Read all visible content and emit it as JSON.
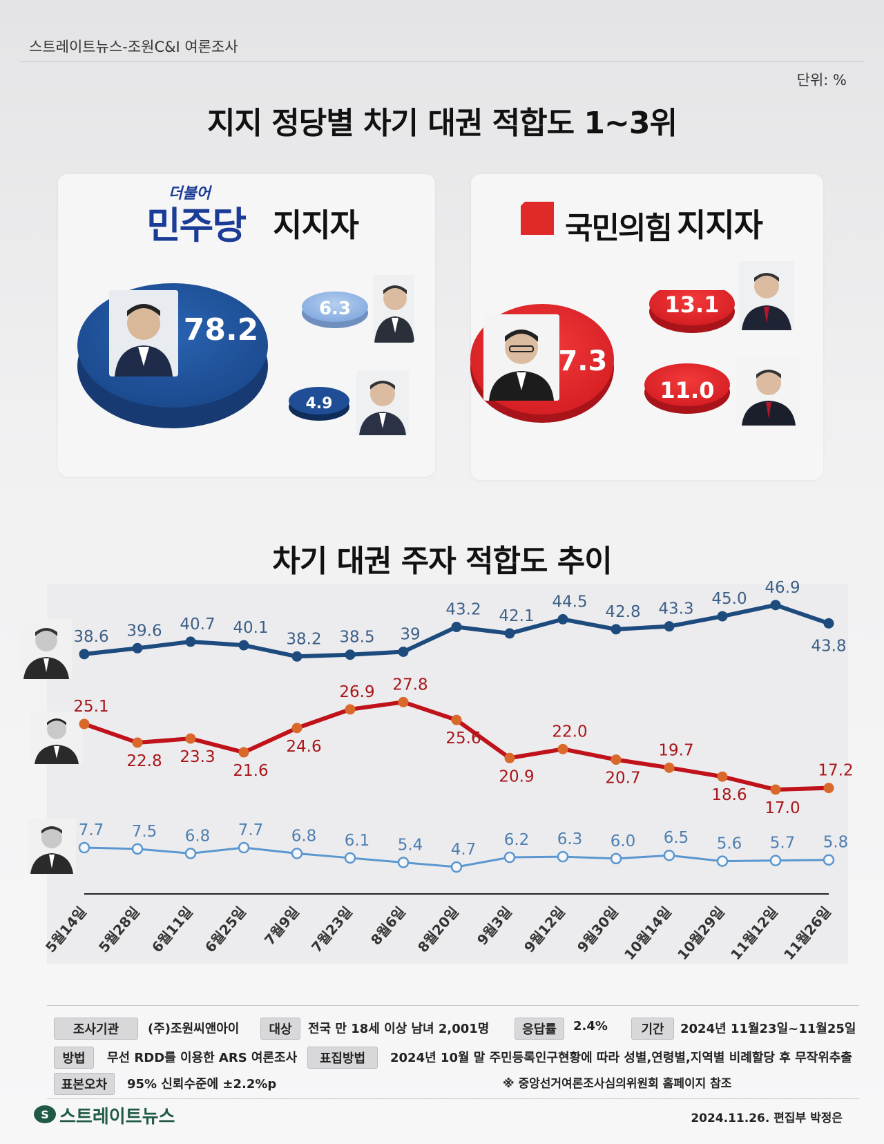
{
  "header": {
    "source": "스트레이트뉴스-조원C&I 여론조사",
    "unit": "단위: %",
    "title": "지지 정당별 차기 대권  적합도 1~3위"
  },
  "dem_panel": {
    "logo_small": "더불어",
    "logo_big": "민주당",
    "supporter_label": "지지자",
    "values": [
      "78.2",
      "6.3",
      "4.9"
    ],
    "colors": {
      "main": "#1f4e96",
      "secondary": "#8fb3e3"
    }
  },
  "ppp_panel": {
    "party_name": "국민의힘",
    "supporter_label": "지지자",
    "values": [
      "47.3",
      "13.1",
      "11.0"
    ],
    "colors": {
      "main": "#e02a2a"
    }
  },
  "trend": {
    "title": "차기 대권 주자 적합도 추이"
  },
  "chart_data": {
    "type": "line",
    "categories": [
      "5월14일",
      "5월28일",
      "6월11일",
      "6월25일",
      "7월9일",
      "7월23일",
      "8월6일",
      "8월20일",
      "9월3일",
      "9월12일",
      "9월30일",
      "10월14일",
      "10월29일",
      "11월12일",
      "11월26일"
    ],
    "series": [
      {
        "values": [
          38.6,
          39.6,
          40.7,
          40.1,
          38.2,
          38.5,
          39,
          43.2,
          42.1,
          44.5,
          42.8,
          43.3,
          45.0,
          46.9,
          43.8
        ],
        "labels": [
          "38.6",
          "39.6",
          "40.7",
          "40.1",
          "38.2",
          "38.5",
          "39",
          "43.2",
          "42.1",
          "44.5",
          "42.8",
          "43.3",
          "45.0",
          "46.9",
          "43.8"
        ],
        "color": "#1e4b7e"
      },
      {
        "values": [
          25.1,
          22.8,
          23.3,
          21.6,
          24.6,
          26.9,
          27.8,
          25.6,
          20.9,
          22.0,
          20.7,
          19.7,
          18.6,
          17.0,
          17.2
        ],
        "labels": [
          "25.1",
          "22.8",
          "23.3",
          "21.6",
          "24.6",
          "26.9",
          "27.8",
          "25.6",
          "20.9",
          "22.0",
          "20.7",
          "19.7",
          "18.6",
          "17.0",
          "17.2"
        ],
        "color": "#c0121a"
      },
      {
        "values": [
          7.7,
          7.5,
          6.8,
          7.7,
          6.8,
          6.1,
          5.4,
          4.7,
          6.2,
          6.3,
          6.0,
          6.5,
          5.6,
          5.7,
          5.8
        ],
        "labels": [
          "7.7",
          "7.5",
          "6.8",
          "7.7",
          "6.8",
          "6.1",
          "5.4",
          "4.7",
          "6.2",
          "6.3",
          "6.0",
          "6.5",
          "5.6",
          "5.7",
          "5.8"
        ],
        "color": "#5a96cf"
      }
    ]
  },
  "meta": {
    "agency_tag": "조사기관",
    "agency": "(주)조원씨앤아이",
    "target_tag": "대상",
    "target": "전국 만 18세 이상 남녀 2,001명",
    "response_tag": "응답률",
    "response": "2.4%",
    "period_tag": "기간",
    "period": "2024년 11월23일~11월25일",
    "method_tag": "방법",
    "method": "무선 RDD를 이용한 ARS 여론조사",
    "weight_tag": "표집방법",
    "weight": "2024년 10월 말 주민등록인구현황에 따라 성별,연령별,지역별 비례할당 후 무작위추출",
    "error_tag": "표본오차",
    "error": "95% 신뢰수준에 ±2.2%p",
    "note": "※ 중앙선거여론조사심의위원회 홈페이지 참조"
  },
  "footer": {
    "brand": "스트레이트뉴스",
    "credit": "2024.11.26. 편집부 박정은"
  }
}
